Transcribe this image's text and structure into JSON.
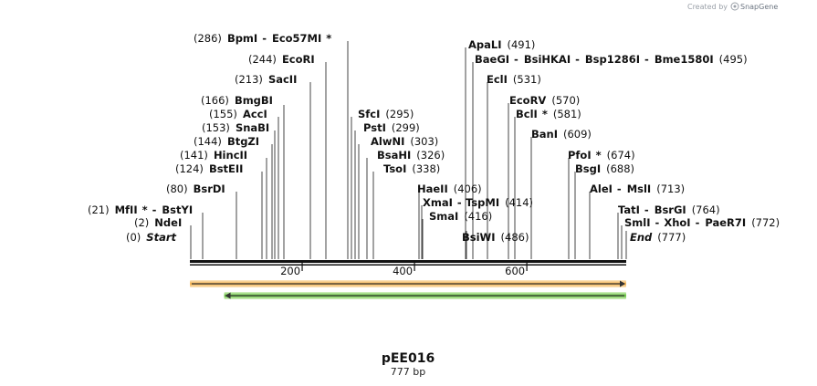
{
  "watermark": {
    "prefix": "Created by",
    "brand": "SnapGene"
  },
  "plasmid": {
    "name": "pEE016",
    "size_label": "777 bp",
    "length": 777
  },
  "ruler": {
    "ticks": [
      200,
      400,
      600
    ]
  },
  "features": [
    {
      "name": "orange-feature-arrow",
      "direction": "forward",
      "color": "#f0a53a",
      "start": 1,
      "end": 777
    },
    {
      "name": "green-feature-arrow",
      "direction": "reverse",
      "color": "#52b82f",
      "start": 62,
      "end": 777
    }
  ],
  "sites": [
    {
      "label": [
        "(286)",
        "BpmI",
        "-",
        "Eco57MI",
        "*"
      ],
      "pos": 286
    },
    {
      "label": [
        "(244)",
        "EcoRI"
      ],
      "pos": 244
    },
    {
      "label": [
        "(213)",
        "SacII"
      ],
      "pos": 213
    },
    {
      "label": [
        "(166)",
        "BmgBI"
      ],
      "pos": 166
    },
    {
      "label": [
        "(155)",
        "AccI"
      ],
      "pos": 155
    },
    {
      "label": [
        "(153)",
        "SnaBI"
      ],
      "pos": 153
    },
    {
      "label": [
        "(144)",
        "BtgZI"
      ],
      "pos": 144
    },
    {
      "label": [
        "(141)",
        "HincII"
      ],
      "pos": 141
    },
    {
      "label": [
        "(124)",
        "BstEII"
      ],
      "pos": 124
    },
    {
      "label": [
        "(80)",
        "BsrDI"
      ],
      "pos": 80
    },
    {
      "label": [
        "(21)",
        "MfII",
        "*",
        "-",
        "BstYI"
      ],
      "pos": 21
    },
    {
      "label": [
        "(2)",
        "NdeI"
      ],
      "pos": 2
    },
    {
      "label": [
        "(0)",
        "Start"
      ],
      "pos": 0
    },
    {
      "label": [
        "SfcI",
        "(295)"
      ],
      "pos": 295
    },
    {
      "label": [
        "PstI",
        "(299)"
      ],
      "pos": 299
    },
    {
      "label": [
        "AlwNI",
        "(303)"
      ],
      "pos": 303
    },
    {
      "label": [
        "BsaHI",
        "(326)"
      ],
      "pos": 326
    },
    {
      "label": [
        "TsoI",
        "(338)"
      ],
      "pos": 338
    },
    {
      "label": [
        "HaeII",
        "(406)"
      ],
      "pos": 406
    },
    {
      "label": [
        "XmaI",
        "-",
        "TspMI",
        "(414)"
      ],
      "pos": 414
    },
    {
      "label": [
        "SmaI",
        "(416)"
      ],
      "pos": 416
    },
    {
      "label": [
        "BsiWI",
        "(486)"
      ],
      "pos": 486
    },
    {
      "label": [
        "ApaLI",
        "(491)"
      ],
      "pos": 491
    },
    {
      "label": [
        "BaeGI",
        "-",
        "BsiHKAI",
        "-",
        "Bsp1286I",
        "-",
        "Bme1580I",
        "(495)"
      ],
      "pos": 495
    },
    {
      "label": [
        "EclI",
        "(531)"
      ],
      "pos": 531
    },
    {
      "label": [
        "EcoRV",
        "(570)"
      ],
      "pos": 570
    },
    {
      "label": [
        "BclI",
        "*",
        "(581)"
      ],
      "pos": 581
    },
    {
      "label": [
        "BanI",
        "(609)"
      ],
      "pos": 609
    },
    {
      "label": [
        "PfoI",
        "*",
        "(674)"
      ],
      "pos": 674
    },
    {
      "label": [
        "BsgI",
        "(688)"
      ],
      "pos": 688
    },
    {
      "label": [
        "AleI",
        "-",
        "MslI",
        "(713)"
      ],
      "pos": 713
    },
    {
      "label": [
        "TatI",
        "-",
        "BsrGI",
        "(764)"
      ],
      "pos": 764
    },
    {
      "label": [
        "SmlI",
        "-",
        "XhoI",
        "-",
        "PaeR7I",
        "(772)"
      ],
      "pos": 772
    },
    {
      "label": [
        "End",
        "(777)"
      ],
      "pos": 777
    }
  ]
}
